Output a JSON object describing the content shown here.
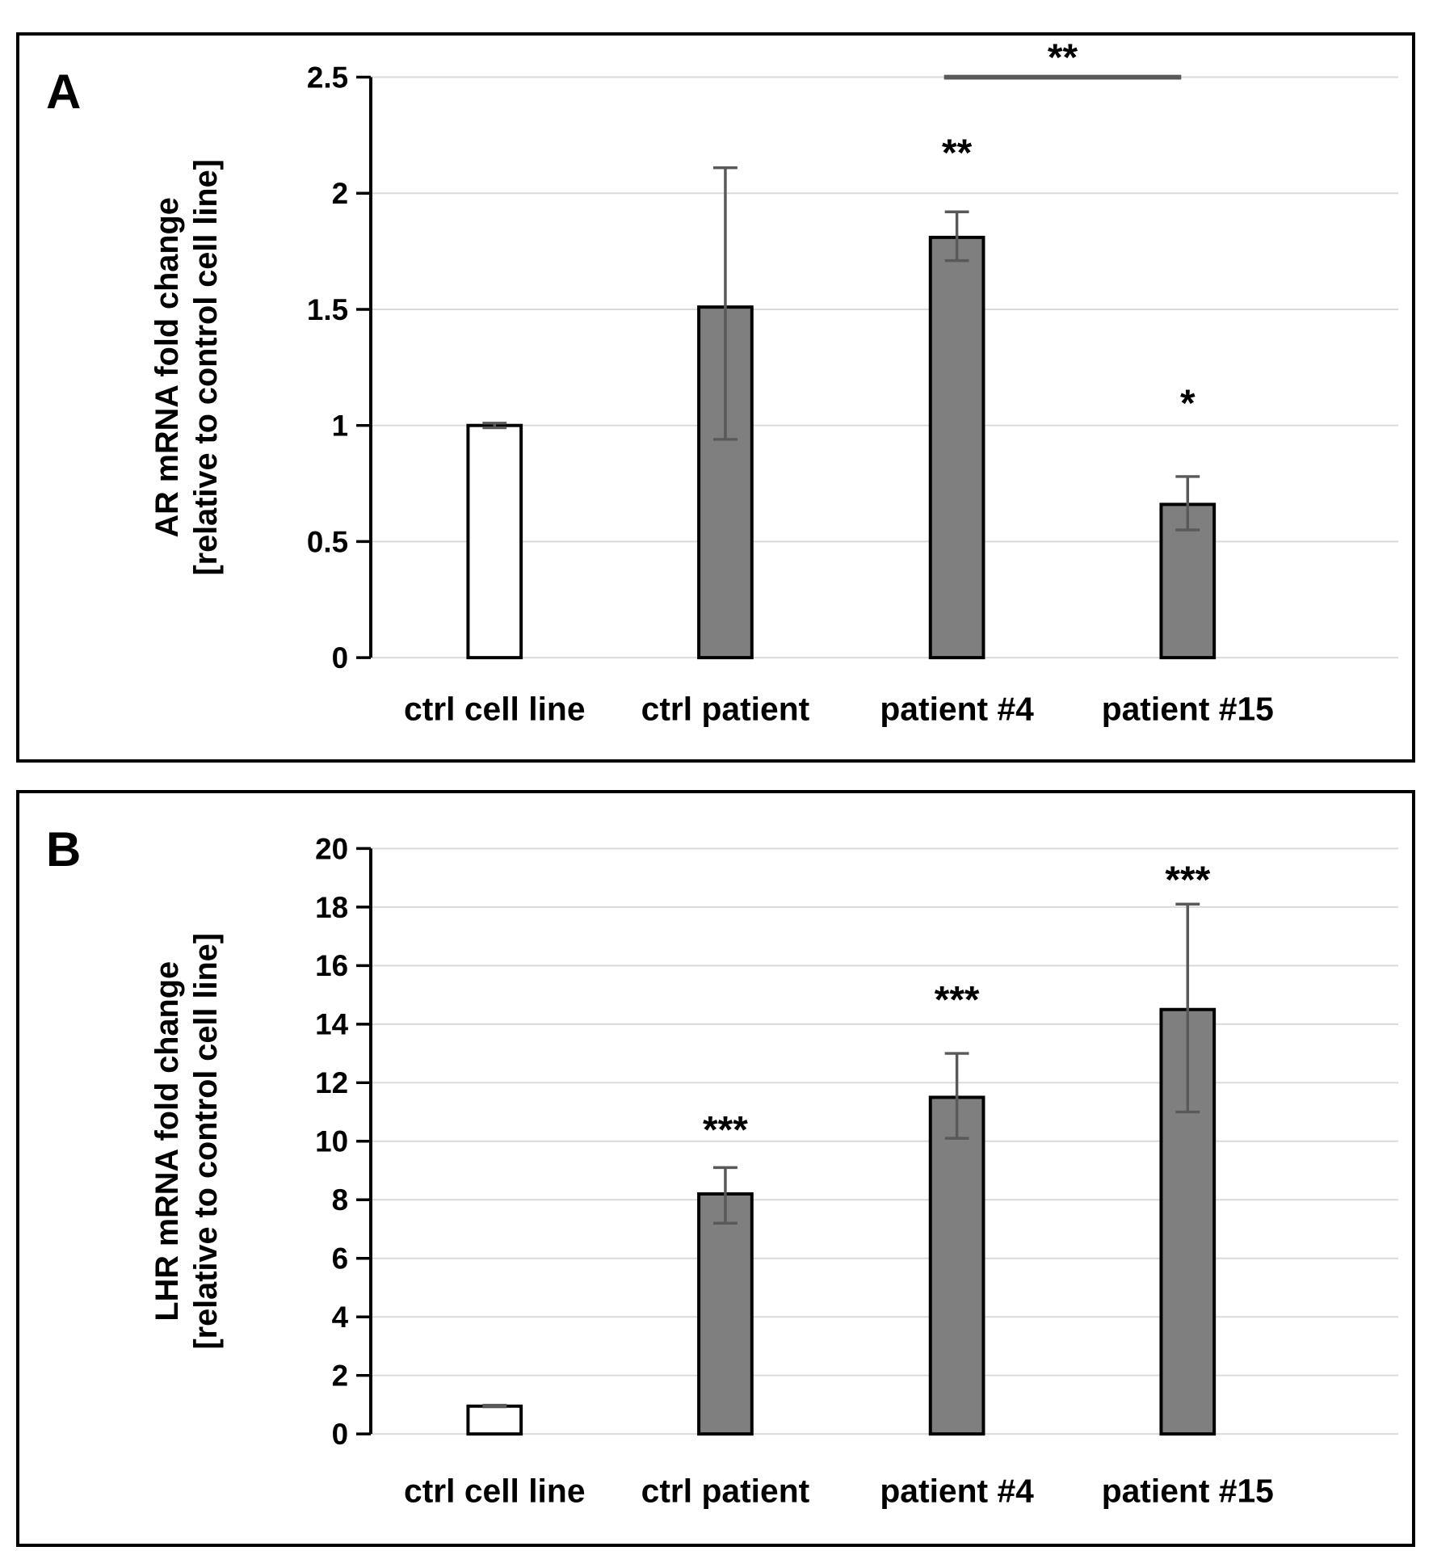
{
  "figure": {
    "background": "#ffffff",
    "panel_border_color": "#000000",
    "bar_fill_gray": "#7f7f7f",
    "bar_fill_white": "#ffffff",
    "bar_stroke": "#000000",
    "error_bar_color": "#595959",
    "gridline_color": "#d9d9d9",
    "sig_line_color": "#595959",
    "text_color": "#000000"
  },
  "chart_data": [
    {
      "type": "bar",
      "panel_label": "A",
      "title": "",
      "ylabel_lines": [
        "AR mRNA fold change",
        "[relative to control cell line]"
      ],
      "categories": [
        "ctrl cell line",
        "ctrl patient",
        "patient #4",
        "patient #15"
      ],
      "values": [
        1.0,
        1.51,
        1.81,
        0.66
      ],
      "error_low": [
        0.99,
        0.94,
        1.71,
        0.55
      ],
      "error_high": [
        1.01,
        2.11,
        1.92,
        0.78
      ],
      "bar_fills": [
        "#ffffff",
        "#7f7f7f",
        "#7f7f7f",
        "#7f7f7f"
      ],
      "ylim": [
        0,
        2.5
      ],
      "yticks": [
        "0",
        "0.5",
        "1",
        "1.5",
        "2",
        "2.5"
      ],
      "grid": true,
      "legend": null,
      "annotations": [
        {
          "text": "**",
          "category_index": 2,
          "y": 2.12
        },
        {
          "text": "*",
          "category_index": 3,
          "y": 1.04
        }
      ],
      "bracket": {
        "from_index": 2,
        "to_index": 3,
        "y": 2.5,
        "text": "**",
        "text_y": 2.53
      }
    },
    {
      "type": "bar",
      "panel_label": "B",
      "title": "",
      "ylabel_lines": [
        "LHR mRNA fold change",
        "[relative to control cell line]"
      ],
      "categories": [
        "ctrl cell line",
        "ctrl patient",
        "patient #4",
        "patient #15"
      ],
      "values": [
        0.95,
        8.2,
        11.5,
        14.5
      ],
      "error_low": [
        0.93,
        7.2,
        10.1,
        11.0
      ],
      "error_high": [
        0.98,
        9.1,
        13.0,
        18.1
      ],
      "bar_fills": [
        "#ffffff",
        "#7f7f7f",
        "#7f7f7f",
        "#7f7f7f"
      ],
      "ylim": [
        0,
        20
      ],
      "yticks": [
        "0",
        "2",
        "4",
        "6",
        "8",
        "10",
        "12",
        "14",
        "16",
        "18",
        "20"
      ],
      "grid": true,
      "legend": null,
      "annotations": [
        {
          "text": "***",
          "category_index": 1,
          "y": 9.95
        },
        {
          "text": "***",
          "category_index": 2,
          "y": 14.4
        },
        {
          "text": "***",
          "category_index": 3,
          "y": 18.5
        }
      ],
      "bracket": null
    }
  ]
}
